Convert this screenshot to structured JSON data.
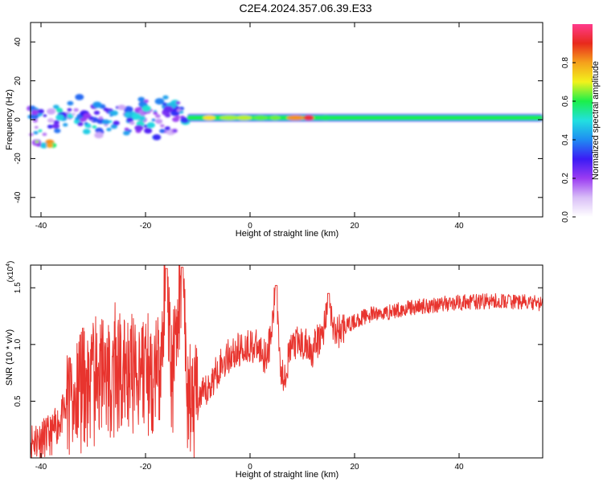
{
  "title": "C2E4.2024.357.06.39.E33",
  "colors": {
    "snr_line": "#e8342e",
    "colormap": [
      "#ffffff",
      "#d9bff7",
      "#9b3cf2",
      "#3b1bf5",
      "#1f8cf2",
      "#22e0e0",
      "#1bef4a",
      "#f2f21c",
      "#f5a11c",
      "#e8291c",
      "#ff3b8c"
    ]
  },
  "chart_data": [
    {
      "type": "heatmap",
      "xlabel": "Height of straight line (km)",
      "ylabel": "Frequency (Hz)",
      "xlim": [
        -42,
        56
      ],
      "ylim": [
        -50,
        50
      ],
      "xticks": [
        -40,
        -20,
        0,
        20,
        40
      ],
      "yticks": [
        -40,
        -20,
        0,
        20,
        40
      ],
      "grid": false,
      "colorbar": {
        "label": "Normalized spectral amplitude",
        "range": [
          0,
          1
        ],
        "ticks": [
          "0.0",
          "0.2",
          "0.4",
          "0.6",
          "0.8"
        ]
      },
      "features": [
        {
          "x_start": -42,
          "x_end": -12,
          "freq_center": 0,
          "freq_spread": 12,
          "amplitude": 0.3,
          "pattern": "scattered blobs"
        },
        {
          "x_start": -41,
          "x_end": -37,
          "freq_center": -12,
          "freq_spread": 2,
          "amplitude": 0.5,
          "pattern": "patch"
        },
        {
          "x_start": -12,
          "x_end": 56,
          "freq_center": 1,
          "freq_spread": 2,
          "amplitude": 0.45,
          "pattern": "continuous band"
        },
        {
          "x_start": -9,
          "x_end": 15,
          "freq_center": 1,
          "freq_spread": 1.5,
          "amplitude": 0.95,
          "pattern": "intense segments"
        }
      ]
    },
    {
      "type": "line",
      "xlabel": "Height of straight line (km)",
      "ylabel": "SNR (10 * v/v)",
      "y_multiplier": "(x10",
      "y_multiplier_exp": "4",
      "y_multiplier_close": ")",
      "xlim": [
        -42,
        56
      ],
      "ylim": [
        0,
        17000
      ],
      "xticks": [
        -40,
        -20,
        0,
        20,
        40
      ],
      "yticks": [
        "0.5",
        "1.0",
        "1.5"
      ],
      "grid": false,
      "series": [
        {
          "x": [
            -42,
            -38,
            -35,
            -32,
            -28,
            -24,
            -20,
            -17,
            -16,
            -15,
            -13,
            -12,
            -11,
            -10,
            -8,
            -6,
            -4,
            -2,
            0,
            2,
            3,
            4,
            5,
            6,
            7,
            8,
            10,
            12,
            14,
            15,
            16,
            18,
            20,
            22,
            24,
            26,
            28,
            30,
            35,
            40,
            45,
            50,
            55
          ],
          "y": [
            1500,
            2000,
            4500,
            6000,
            7000,
            7500,
            7500,
            7000,
            16700,
            6500,
            16800,
            6000,
            4000,
            5000,
            6000,
            8000,
            9000,
            9500,
            10000,
            9500,
            9000,
            10500,
            15200,
            7000,
            8000,
            10000,
            10000,
            9500,
            11000,
            14500,
            11000,
            11500,
            12000,
            12500,
            12700,
            12800,
            13000,
            13200,
            13500,
            13700,
            13800,
            13800,
            13600
          ]
        }
      ]
    }
  ]
}
